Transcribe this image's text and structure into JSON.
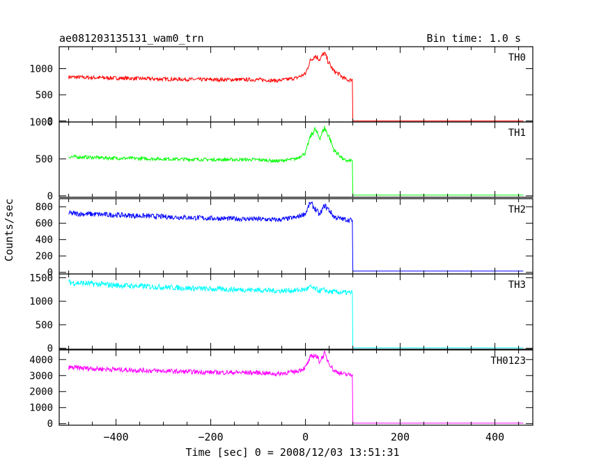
{
  "header": {
    "title": "ae081203135131_wam0_trn",
    "bin_time": "Bin time: 1.0 s"
  },
  "chart_data": {
    "type": "line",
    "title": "ae081203135131_wam0_trn",
    "xlabel": "Time [sec] 0 = 2008/12/03 13:51:31",
    "ylabel": "Counts/sec",
    "xlim": [
      -520,
      480
    ],
    "x_ticks": [
      -400,
      -200,
      0,
      200,
      400
    ],
    "x_tick_labels": [
      "−400",
      "−200",
      "0",
      "200",
      "400"
    ],
    "grid": false,
    "panels": [
      {
        "name": "TH0",
        "color": "#ff0000",
        "ylim": [
          -20,
          1420
        ],
        "y_ticks": [
          0,
          500,
          1000
        ],
        "y_tick_labels": [
          "0",
          "500",
          "1000"
        ],
        "x": [
          -500,
          -400,
          -300,
          -200,
          -100,
          -60,
          -20,
          0,
          10,
          20,
          30,
          40,
          50,
          60,
          70,
          80,
          90,
          99,
          100,
          200,
          300,
          400,
          460
        ],
        "y": [
          840,
          820,
          800,
          790,
          790,
          770,
          820,
          900,
          1150,
          1250,
          1180,
          1300,
          1100,
          950,
          900,
          820,
          780,
          790,
          0,
          0,
          0,
          0,
          0
        ]
      },
      {
        "name": "TH1",
        "color": "#00ff00",
        "ylim": [
          -20,
          1000
        ],
        "y_ticks": [
          0,
          500,
          1000
        ],
        "y_tick_labels": [
          "0",
          "500",
          "1000"
        ],
        "x": [
          -500,
          -400,
          -300,
          -200,
          -100,
          -60,
          -20,
          0,
          10,
          20,
          30,
          40,
          50,
          60,
          70,
          80,
          90,
          99,
          100,
          200,
          300,
          400,
          460
        ],
        "y": [
          530,
          510,
          500,
          490,
          490,
          470,
          500,
          580,
          800,
          900,
          780,
          920,
          800,
          620,
          560,
          490,
          470,
          480,
          10,
          10,
          10,
          10,
          10
        ]
      },
      {
        "name": "TH2",
        "color": "#0000ff",
        "ylim": [
          -20,
          900
        ],
        "y_ticks": [
          0,
          200,
          400,
          600,
          800
        ],
        "y_tick_labels": [
          "0",
          "200",
          "400",
          "600",
          "800"
        ],
        "x": [
          -500,
          -400,
          -300,
          -200,
          -100,
          -60,
          -20,
          0,
          10,
          20,
          30,
          40,
          50,
          60,
          70,
          80,
          90,
          99,
          100,
          200,
          300,
          400,
          460
        ],
        "y": [
          720,
          700,
          680,
          660,
          650,
          640,
          670,
          720,
          850,
          780,
          700,
          820,
          760,
          680,
          660,
          650,
          640,
          640,
          15,
          15,
          15,
          15,
          15
        ]
      },
      {
        "name": "TH3",
        "color": "#00ffff",
        "ylim": [
          -20,
          1580
        ],
        "y_ticks": [
          0,
          500,
          1000,
          1500
        ],
        "y_tick_labels": [
          "0",
          "500",
          "1000",
          "1500"
        ],
        "x": [
          -500,
          -400,
          -300,
          -200,
          -100,
          -60,
          -20,
          0,
          10,
          20,
          30,
          40,
          50,
          60,
          70,
          80,
          90,
          99,
          100,
          200,
          300,
          400,
          460
        ],
        "y": [
          1400,
          1340,
          1300,
          1260,
          1240,
          1220,
          1230,
          1250,
          1300,
          1260,
          1220,
          1240,
          1200,
          1200,
          1190,
          1190,
          1180,
          1180,
          10,
          10,
          10,
          10,
          10
        ]
      },
      {
        "name": "TH0123",
        "color": "#ff00ff",
        "ylim": [
          -100,
          4600
        ],
        "y_ticks": [
          0,
          1000,
          2000,
          3000,
          4000
        ],
        "y_tick_labels": [
          "0",
          "1000",
          "2000",
          "3000",
          "4000"
        ],
        "x": [
          -500,
          -400,
          -300,
          -200,
          -100,
          -60,
          -20,
          0,
          10,
          20,
          30,
          40,
          50,
          60,
          70,
          80,
          90,
          99,
          100,
          200,
          300,
          400,
          460
        ],
        "y": [
          3500,
          3380,
          3280,
          3200,
          3180,
          3100,
          3250,
          3500,
          4100,
          4300,
          3900,
          4350,
          3800,
          3300,
          3200,
          3100,
          3050,
          3050,
          30,
          30,
          30,
          30,
          30
        ]
      }
    ]
  }
}
